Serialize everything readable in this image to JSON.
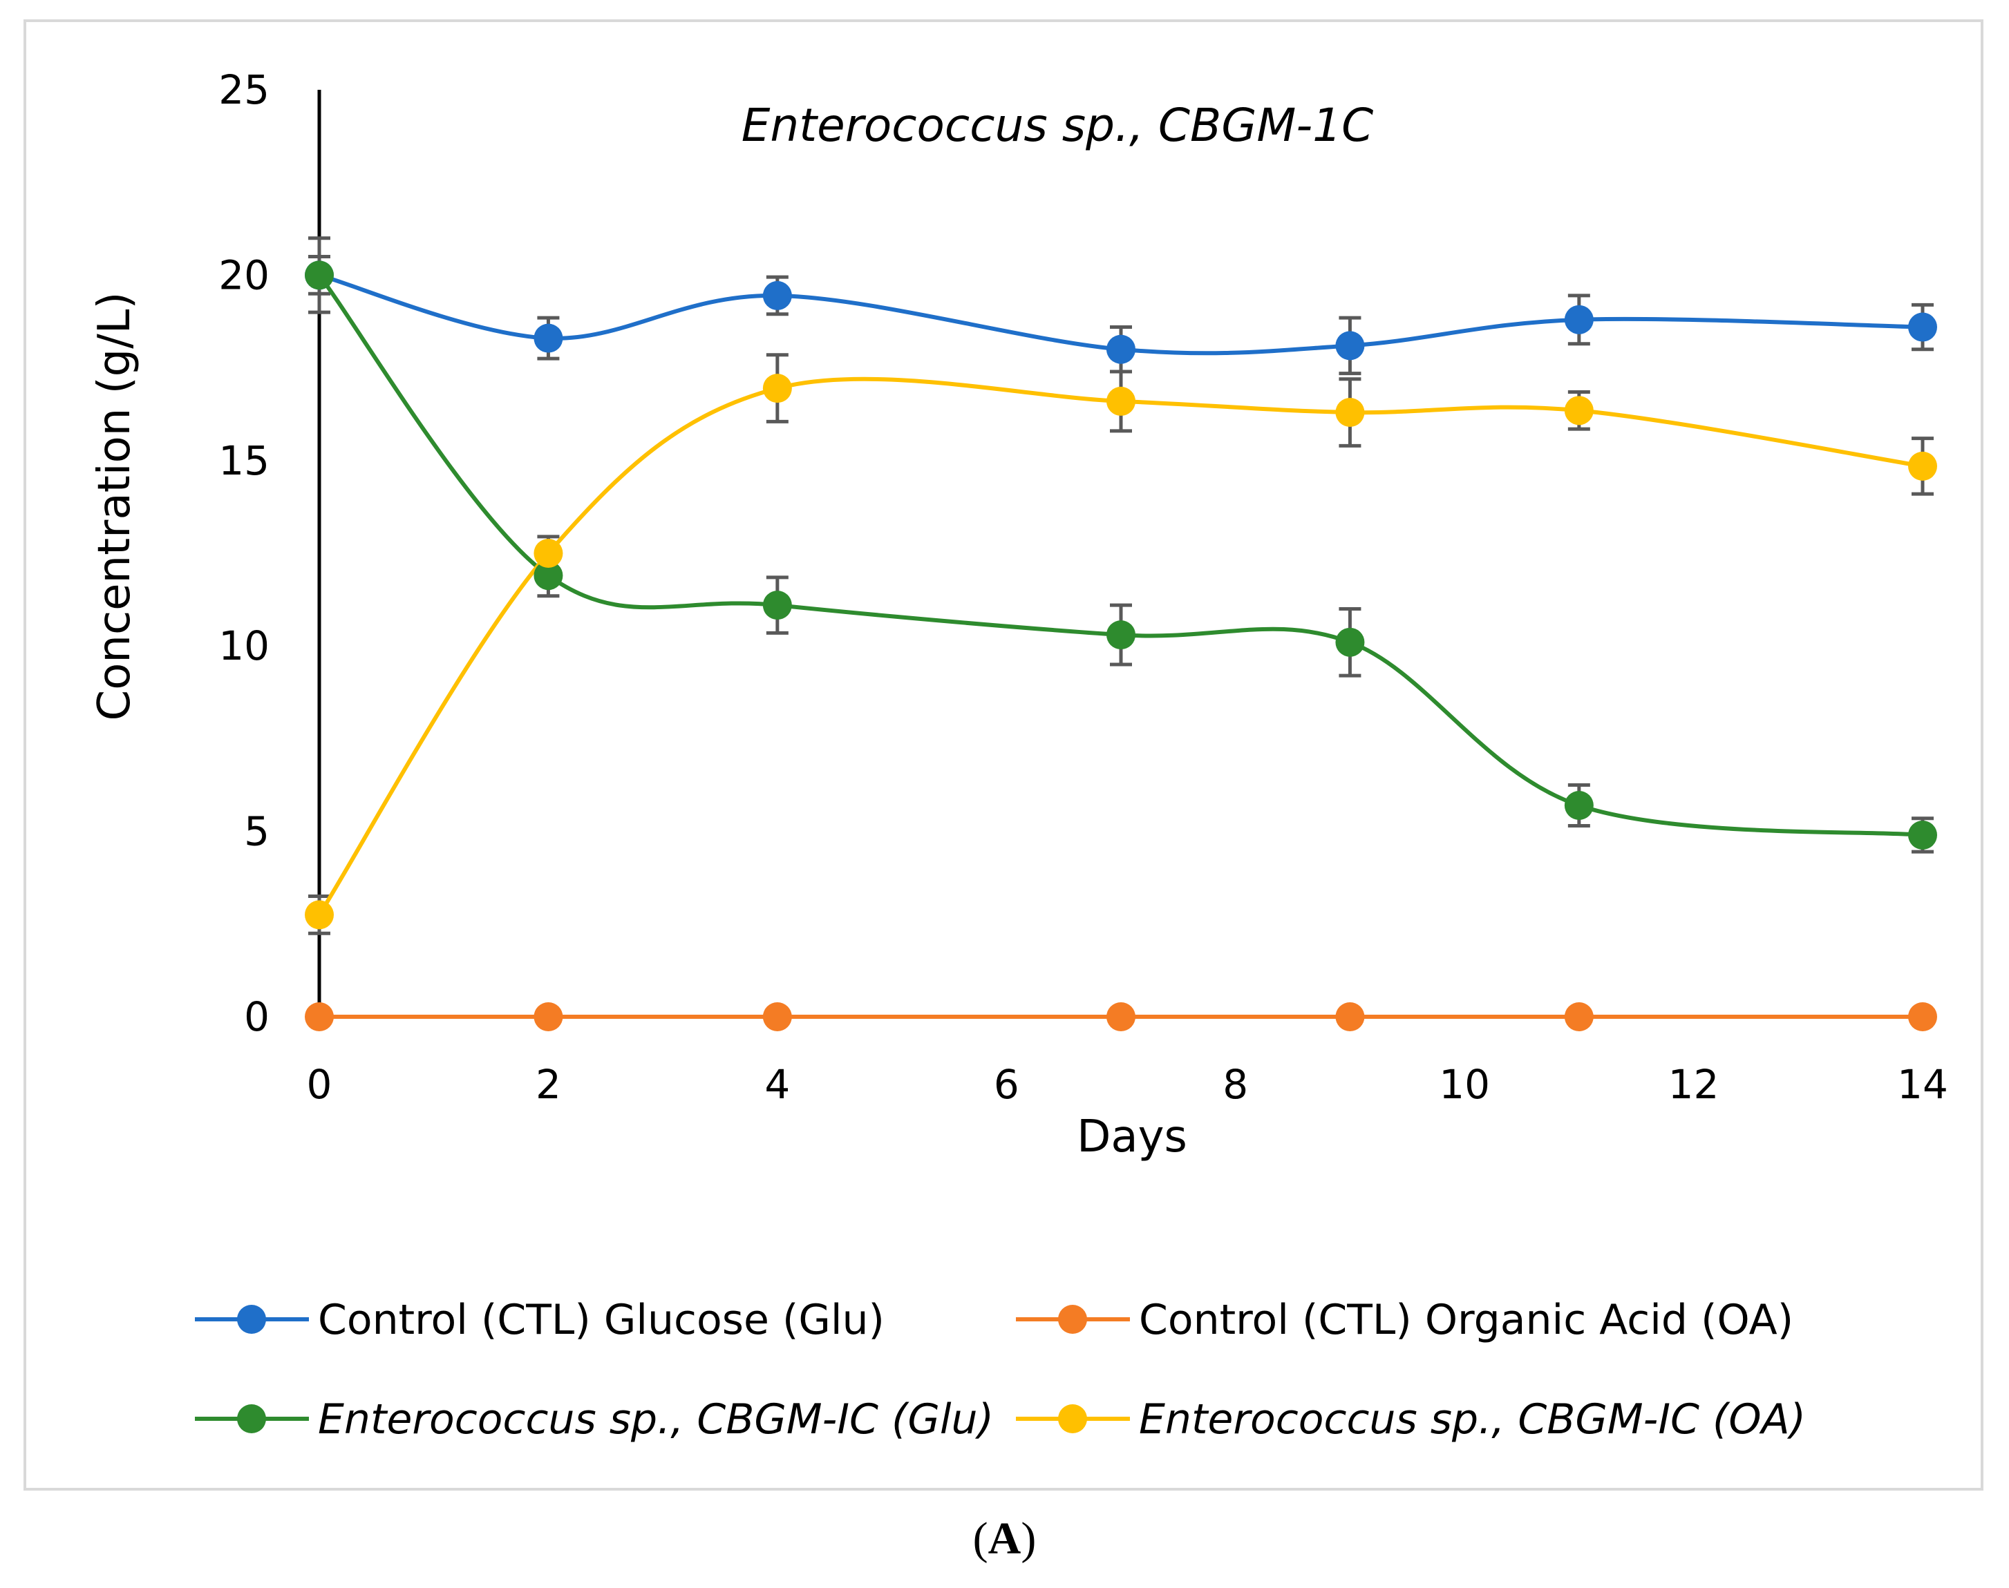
{
  "chart_data": {
    "type": "line",
    "title": "Enterococcus sp., CBGM-1C",
    "xlabel": "Days",
    "ylabel": "Concentration (g/L)",
    "xlim": [
      0,
      14
    ],
    "ylim": [
      0,
      25
    ],
    "xticks": [
      "0",
      "2",
      "4",
      "6",
      "8",
      "10",
      "12",
      "14"
    ],
    "yticks": [
      "0",
      "5",
      "10",
      "15",
      "20",
      "25"
    ],
    "x": [
      0,
      2,
      4,
      7,
      9,
      11,
      14
    ],
    "series": [
      {
        "name": "Control (CTL)  Glucose (Glu)",
        "color": "#1f6fc9",
        "italic": false,
        "values": [
          20.0,
          18.3,
          19.45,
          18.0,
          18.1,
          18.8,
          18.6
        ],
        "errors": [
          0.5,
          0.55,
          0.5,
          0.6,
          0.75,
          0.65,
          0.6
        ]
      },
      {
        "name": "Control (CTL)  Organic Acid (OA)",
        "color": "#f47c24",
        "italic": false,
        "values": [
          0,
          0,
          0,
          0,
          0,
          0,
          0
        ],
        "errors": [
          0,
          0,
          0,
          0,
          0,
          0,
          0
        ]
      },
      {
        "name": "Enterococcus sp., CBGM-IC  (Glu)",
        "color": "#2e8b2e",
        "italic": true,
        "values": [
          20.0,
          11.9,
          11.1,
          10.3,
          10.1,
          5.7,
          4.9
        ],
        "errors": [
          1.0,
          0.55,
          0.75,
          0.8,
          0.9,
          0.55,
          0.45
        ]
      },
      {
        "name": "Enterococcus sp., CBGM-IC  (OA)",
        "color": "#ffc000",
        "italic": true,
        "values": [
          2.75,
          12.5,
          16.95,
          16.6,
          16.3,
          16.35,
          14.85
        ],
        "errors": [
          0.5,
          0.45,
          0.9,
          0.8,
          0.9,
          0.5,
          0.75
        ]
      }
    ],
    "legend_position": "bottom",
    "grid": false
  },
  "caption": "A"
}
